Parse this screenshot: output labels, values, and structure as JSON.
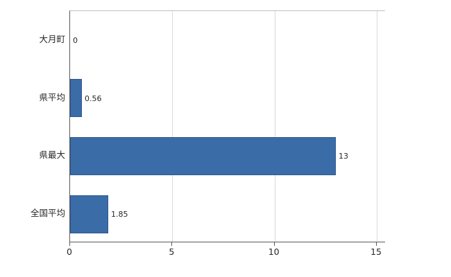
{
  "chart_data": {
    "type": "bar",
    "orientation": "horizontal",
    "title": "",
    "xlabel": "",
    "ylabel": "",
    "categories": [
      "大月町",
      "県平均",
      "県最大",
      "全国平均"
    ],
    "values": [
      0,
      0.56,
      13,
      1.85
    ],
    "value_labels": [
      "0",
      "0.56",
      "13",
      "1.85"
    ],
    "x_ticks": [
      0,
      5,
      10,
      15
    ],
    "xlim": [
      0,
      15.42
    ],
    "grid": "vertical gridlines at x ticks",
    "legend": "none",
    "colors": {
      "bar_fill": "#3a6ca8",
      "bar_border": "#2f578a",
      "gridline": "#d9d9d9",
      "axis_line": "#595959",
      "text": "#262626",
      "background": "#ffffff"
    }
  }
}
